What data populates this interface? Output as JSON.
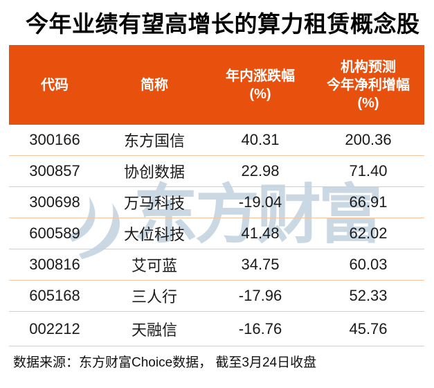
{
  "title": "今年业绩有望高增长的算力租赁概念股",
  "colors": {
    "header_bg": "#E8500E",
    "divider": "#F4C5A1",
    "watermark": "#CAD8E4",
    "title_text": "#000000",
    "header_text": "#FFFFFF"
  },
  "table": {
    "columns": [
      {
        "id": "code",
        "header_lines": [
          "代码"
        ]
      },
      {
        "id": "name",
        "header_lines": [
          "简称"
        ]
      },
      {
        "id": "ytd_change_pct",
        "header_lines": [
          "年内涨跌幅",
          "(%)"
        ]
      },
      {
        "id": "forecast_net_profit_growth_pct",
        "header_lines": [
          "机构预测",
          "今年净利增幅",
          "(%)"
        ]
      }
    ],
    "rows": [
      [
        "300166",
        "东方国信",
        "40.31",
        "200.36"
      ],
      [
        "300857",
        "协创数据",
        "22.98",
        "71.40"
      ],
      [
        "300698",
        "万马科技",
        "-19.04",
        "66.91"
      ],
      [
        "600589",
        "大位科技",
        "41.48",
        "62.02"
      ],
      [
        "300816",
        "艾可蓝",
        "34.75",
        "60.03"
      ],
      [
        "605168",
        "三人行",
        "-17.96",
        "52.33"
      ],
      [
        "002212",
        "天融信",
        "-16.76",
        "45.76"
      ]
    ]
  },
  "watermark": {
    "text": "东方财富",
    "logo": "eastmoney-swoosh-icon"
  },
  "footer": {
    "source_note": "数据来源：东方财富Choice数据， 截至3月24日收盘"
  },
  "chart_data": {
    "type": "table",
    "title": "今年业绩有望高增长的算力租赁概念股",
    "columns": [
      "代码",
      "简称",
      "年内涨跌幅(%)",
      "机构预测今年净利增幅(%)"
    ],
    "rows": [
      [
        "300166",
        "东方国信",
        40.31,
        200.36
      ],
      [
        "300857",
        "协创数据",
        22.98,
        71.4
      ],
      [
        "300698",
        "万马科技",
        -19.04,
        66.91
      ],
      [
        "600589",
        "大位科技",
        41.48,
        62.02
      ],
      [
        "300816",
        "艾可蓝",
        34.75,
        60.03
      ],
      [
        "605168",
        "三人行",
        -17.96,
        52.33
      ],
      [
        "002212",
        "天融信",
        -16.76,
        45.76
      ]
    ],
    "source": "数据来源：东方财富Choice数据， 截至3月24日收盘"
  }
}
